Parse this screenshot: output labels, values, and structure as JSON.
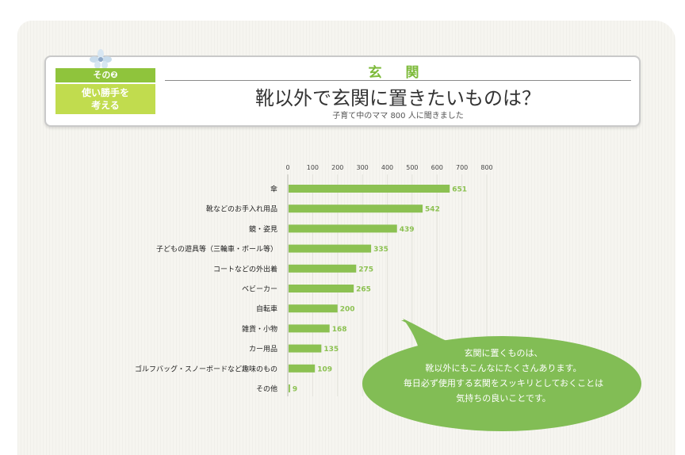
{
  "header": {
    "tag_number": "その❷",
    "tag_line1": "使い勝手を",
    "tag_line2": "考える",
    "category": "玄 関",
    "title": "靴以外で玄関に置きたいものは？",
    "subtitle": "子育て中のママ 800 人に聞きました"
  },
  "bubble": {
    "lines": [
      "玄関に置くものは、",
      "靴以外にもこんなにたくさんあります。",
      "毎日必ず使用する玄関をスッキリとしておくことは",
      "気持ちの良いことです。"
    ]
  },
  "colors": {
    "bar": "#8cc152",
    "bubble": "#82bd55",
    "accent": "#7dba3a"
  },
  "chart_data": {
    "type": "bar",
    "orientation": "horizontal",
    "categories": [
      "傘",
      "靴などのお手入れ用品",
      "鏡・姿見",
      "子どもの遊具等（三輪車・ボール等）",
      "コートなどの外出着",
      "ベビーカー",
      "自転車",
      "雑貨・小物",
      "カー用品",
      "ゴルフバッグ・スノーボードなど趣味のもの",
      "その他"
    ],
    "values": [
      651,
      542,
      439,
      335,
      275,
      265,
      200,
      168,
      135,
      109,
      9
    ],
    "xlim": [
      0,
      800
    ],
    "xticks": [
      0,
      100,
      200,
      300,
      400,
      500,
      600,
      700,
      800
    ],
    "xtick_position": "top",
    "data_labels": true
  }
}
